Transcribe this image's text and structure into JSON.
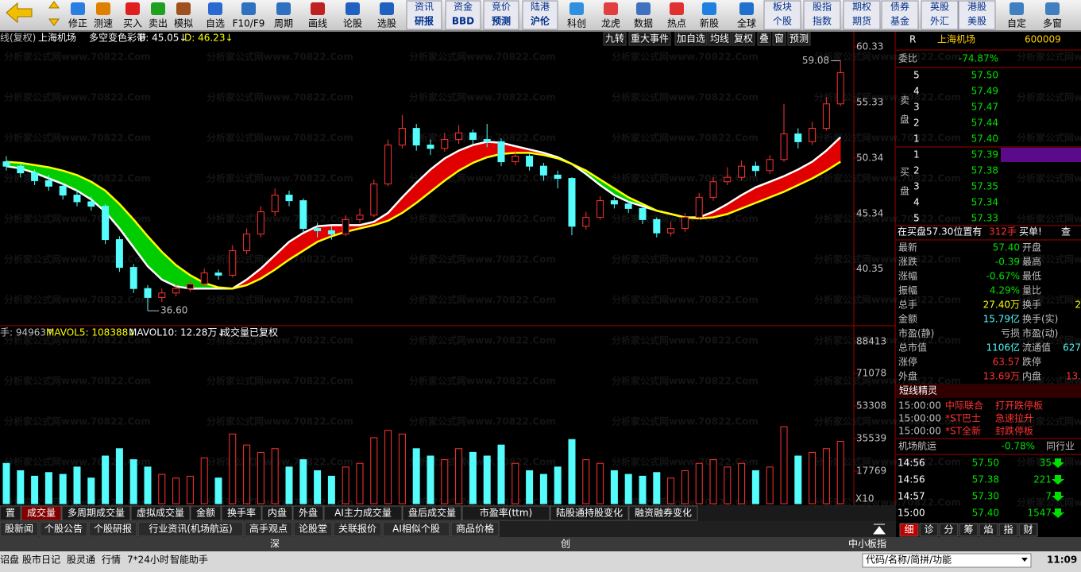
{
  "toolbar": {
    "buttons": [
      "修正",
      "测速",
      "买入",
      "卖出",
      "模拟",
      "自选",
      "F10/F9",
      "周期",
      "画线",
      "论股",
      "选股"
    ],
    "pairs": [
      [
        "资讯",
        "研报"
      ],
      [
        "资金",
        "BBD"
      ],
      [
        "竞价",
        "预测"
      ],
      [
        "陆港",
        "沪伦"
      ]
    ],
    "icons": [
      "科创",
      "龙虎",
      "数据",
      "热点",
      "新股",
      "全球"
    ],
    "pairs2": [
      [
        "板块",
        "个股"
      ],
      [
        "股指",
        "指数"
      ],
      [
        "期权",
        "期货"
      ],
      [
        "债券",
        "基金"
      ],
      [
        "英股",
        "外汇"
      ],
      [
        "港股",
        "美股"
      ]
    ],
    "end": [
      "自定",
      "多窗"
    ]
  },
  "watermark": "分析家公式网www.70822.Com",
  "price_chart": {
    "header": [
      "线(复权)",
      "上海机场",
      "多空变色彩带",
      "B: 45.05↓",
      "D: 46.23↓"
    ],
    "buttons": [
      "九转",
      "重大事件",
      "加自选",
      "均线",
      "复权",
      "叠",
      "窗",
      "预测"
    ],
    "ylim": [
      35.4,
      61.54
    ],
    "yticks": [
      60.33,
      55.33,
      50.34,
      45.34,
      40.35
    ],
    "up_color": "#ff3232",
    "down_color": "#54fcfc",
    "open": [
      50.0,
      49.6,
      49.0,
      48.3,
      47.8,
      47.0,
      46.4,
      46.0,
      43.0,
      40.5,
      38.6,
      37.8,
      38.2,
      38.6,
      39.0,
      40.0,
      39.8,
      42.0,
      43.5,
      45.5,
      47.0,
      46.5,
      44.0,
      43.8,
      43.5,
      44.8,
      45.2,
      48.0,
      51.5,
      53.0,
      51.5,
      51.2,
      52.0,
      52.6,
      52.0,
      51.8,
      50.0,
      50.5,
      49.6,
      48.8,
      48.5,
      44.2,
      45.0,
      46.5,
      46.2,
      45.8,
      44.8,
      43.6,
      44.0,
      45.0,
      46.8,
      48.2,
      48.6,
      49.6,
      49.2,
      50.2,
      52.5,
      51.8,
      53.0,
      55.2
    ],
    "high": [
      50.5,
      49.9,
      49.3,
      48.8,
      48.1,
      47.5,
      46.9,
      46.2,
      43.3,
      40.8,
      38.9,
      38.6,
      39.0,
      39.4,
      40.4,
      40.3,
      42.5,
      44.0,
      46.0,
      47.6,
      47.4,
      46.7,
      44.5,
      44.2,
      45.2,
      45.8,
      48.4,
      52.0,
      54.2,
      53.4,
      52.0,
      52.6,
      53.3,
      52.9,
      53.4,
      52.1,
      51.0,
      50.8,
      49.9,
      49.2,
      48.6,
      45.5,
      46.9,
      46.8,
      46.5,
      46.0,
      45.0,
      44.6,
      45.4,
      47.2,
      48.6,
      49.5,
      50.1,
      50.0,
      50.6,
      55.2,
      53.0,
      53.6,
      55.8,
      59.08
    ],
    "low": [
      49.2,
      48.6,
      47.9,
      47.4,
      46.6,
      46.0,
      45.6,
      42.6,
      40.1,
      38.2,
      36.6,
      37.4,
      37.9,
      38.3,
      38.8,
      39.4,
      39.6,
      41.7,
      43.2,
      45.1,
      46.0,
      43.6,
      43.2,
      43.0,
      43.3,
      44.5,
      45.0,
      47.8,
      51.2,
      51.0,
      50.6,
      50.9,
      51.6,
      51.5,
      51.3,
      49.6,
      49.7,
      49.2,
      48.3,
      47.6,
      43.4,
      43.9,
      44.8,
      45.8,
      45.4,
      44.4,
      43.2,
      43.3,
      43.7,
      44.8,
      46.5,
      47.9,
      48.3,
      48.7,
      48.9,
      50.0,
      51.2,
      51.5,
      52.8,
      55.0
    ],
    "close": [
      49.6,
      49.0,
      48.3,
      47.8,
      47.0,
      46.4,
      46.0,
      43.0,
      40.5,
      38.6,
      37.8,
      38.2,
      38.6,
      39.0,
      40.0,
      39.8,
      42.0,
      43.5,
      45.5,
      47.0,
      46.5,
      44.0,
      43.8,
      43.5,
      44.8,
      45.2,
      48.0,
      51.5,
      53.0,
      51.5,
      51.2,
      52.0,
      52.6,
      52.0,
      51.8,
      50.0,
      50.5,
      49.6,
      48.8,
      48.5,
      44.2,
      45.0,
      46.5,
      46.2,
      45.8,
      44.8,
      43.6,
      44.0,
      45.0,
      46.8,
      48.2,
      48.6,
      49.6,
      49.2,
      50.2,
      52.5,
      51.8,
      53.0,
      55.2,
      58.0
    ],
    "fast_line": {
      "color": "#ffffff",
      "values": [
        49.6,
        49.4,
        49.0,
        48.5,
        48.0,
        47.4,
        46.6,
        45.5,
        44.0,
        42.3,
        40.6,
        39.4,
        38.8,
        38.6,
        38.6,
        38.6,
        38.6,
        39.4,
        40.4,
        41.6,
        42.8,
        43.6,
        44.2,
        44.3,
        44.3,
        44.3,
        44.6,
        45.4,
        46.8,
        48.1,
        49.3,
        50.3,
        51.0,
        51.5,
        51.8,
        51.7,
        51.4,
        51.1,
        50.8,
        50.4,
        49.8,
        48.9,
        47.9,
        47.0,
        46.4,
        46.0,
        45.6,
        45.3,
        45.0,
        45.0,
        45.5,
        46.2,
        47.0,
        47.7,
        48.2,
        48.7,
        49.3,
        50.0,
        51.0,
        52.2
      ]
    },
    "slow_line": {
      "color": "#ffff00",
      "values": [
        50.0,
        49.9,
        49.7,
        49.5,
        49.2,
        48.8,
        48.2,
        47.4,
        46.2,
        44.8,
        43.3,
        41.9,
        40.7,
        39.8,
        39.1,
        38.7,
        38.6,
        38.9,
        39.5,
        40.3,
        41.2,
        42.0,
        42.8,
        43.3,
        43.7,
        44.0,
        44.3,
        44.7,
        45.4,
        46.3,
        47.3,
        48.3,
        49.2,
        49.9,
        50.4,
        50.7,
        50.8,
        50.8,
        50.6,
        50.3,
        49.8,
        49.2,
        48.4,
        47.6,
        46.8,
        46.2,
        45.6,
        45.3,
        45.0,
        44.9,
        45.0,
        45.3,
        45.8,
        46.3,
        46.8,
        47.3,
        47.9,
        48.5,
        49.2,
        50.0
      ]
    },
    "band_colors": {
      "bull": "#e00000",
      "bear": "#00cc00"
    },
    "low_label": {
      "index": 10,
      "label": "36.60"
    },
    "high_label": {
      "index": 59,
      "label": "59.08"
    }
  },
  "volume_chart": {
    "header": [
      "手: 94963↑",
      "MAVOL5: 108388↓",
      "MAVOL10: 12.28万↓",
      "成交量已复权"
    ],
    "ylim": [
      0,
      92750
    ],
    "yticks": [
      88413,
      71078,
      53308,
      35539,
      17769
    ],
    "multiplier": "X10",
    "values": [
      22000,
      18000,
      15000,
      17000,
      16000,
      20000,
      14000,
      26000,
      30000,
      24000,
      20000,
      16000,
      14000,
      15000,
      25000,
      14000,
      38000,
      32000,
      28000,
      30000,
      20000,
      24000,
      18000,
      15000,
      20000,
      22000,
      36000,
      40000,
      38000,
      30000,
      26000,
      24000,
      30000,
      28000,
      26000,
      32000,
      22000,
      18000,
      16000,
      20000,
      35000,
      24000,
      22000,
      18000,
      16000,
      15000,
      17000,
      14000,
      18000,
      22000,
      24000,
      20000,
      22000,
      18000,
      20000,
      42000,
      26000,
      28000,
      30000,
      34000
    ]
  },
  "quote": {
    "flag": "R",
    "name": "上海机场",
    "code": "600009",
    "weibi": [
      "委比",
      "-74.87%"
    ],
    "sell_label": "卖盘",
    "buy_label": "买盘",
    "asks": [
      [
        "5",
        "57.50"
      ],
      [
        "4",
        "57.49"
      ],
      [
        "3",
        "57.47"
      ],
      [
        "2",
        "57.44"
      ],
      [
        "1",
        "57.40"
      ]
    ],
    "bids": [
      [
        "1",
        "57.39"
      ],
      [
        "2",
        "57.38"
      ],
      [
        "3",
        "57.35"
      ],
      [
        "4",
        "57.34"
      ],
      [
        "5",
        "57.33"
      ]
    ],
    "notice": [
      "在买盘57.30位置有",
      "312手",
      "买单!",
      "查"
    ],
    "stats": [
      {
        "cells": [
          "最新",
          "57.40",
          "开盘"
        ],
        "color": "#00e000"
      },
      {
        "cells": [
          "涨跌",
          "-0.39",
          "最高"
        ],
        "color": "#00e000"
      },
      {
        "cells": [
          "涨幅",
          "-0.67%",
          "最低"
        ],
        "color": "#00e000"
      },
      {
        "cells": [
          "振幅",
          "4.29%",
          "量比"
        ],
        "color": "#00e000"
      },
      {
        "cells": [
          "总手",
          "27.40万",
          "换手",
          "2"
        ],
        "color": "#ffff00"
      },
      {
        "cells": [
          "金额",
          "15.79亿",
          "换手(实)"
        ],
        "color": "#54fcfc"
      },
      {
        "cells": [
          "市盈(静)",
          "亏损",
          "市盈(动)"
        ],
        "color": "#c0c0c0"
      },
      {
        "cells": [
          "总市值",
          "1106亿",
          "流通值",
          "627"
        ],
        "color": "#54fcfc"
      },
      {
        "cells": [
          "涨停",
          "63.57",
          "跌停"
        ],
        "color": "#ff3232"
      },
      {
        "cells": [
          "外盘",
          "13.69万",
          "内盘",
          "13."
        ],
        "color": "#ff3232"
      }
    ],
    "alerts_title": "短线精灵",
    "alerts": [
      [
        "15:00:00",
        "中际联合",
        "打开跌停板"
      ],
      [
        "15:00:00",
        "*ST巴士",
        "急速拉升"
      ],
      [
        "15:00:00",
        "*ST全新",
        "封跌停板"
      ]
    ],
    "sector": [
      "机场航运",
      "-0.78%",
      "同行业"
    ],
    "ticks": [
      [
        "14:56",
        "57.50",
        "35"
      ],
      [
        "14:56",
        "57.38",
        "221"
      ],
      [
        "14:57",
        "57.30",
        "7"
      ],
      [
        "15:00",
        "57.40",
        "1547"
      ]
    ],
    "tabs": [
      "细",
      "诊",
      "分",
      "筹",
      "焰",
      "指",
      "财"
    ]
  },
  "bottom": {
    "indicator_tabs": [
      "置",
      "成交量",
      "多周期成交量",
      "虚拟成交量",
      "金额",
      "换手率",
      "内盘",
      "外盘",
      "AI主力成交量",
      "盘后成交量",
      "市盈率(ttm)",
      "陆股通持股变化",
      "融资融券变化"
    ],
    "info_tabs": [
      "股新闻",
      "个股公告",
      "个股研报",
      "行业资讯(机场航运)",
      "高手观点",
      "论股堂",
      "关联报价",
      "AI相似个股",
      "商品价格"
    ],
    "index_bar": [
      "深",
      "创",
      "中小板指"
    ],
    "status": [
      "诏盘",
      "股市日记",
      "股灵通",
      "行情",
      "7*24小时",
      "智能助手"
    ],
    "search": "代码/名称/简拼/功能",
    "clock": "11:09"
  }
}
